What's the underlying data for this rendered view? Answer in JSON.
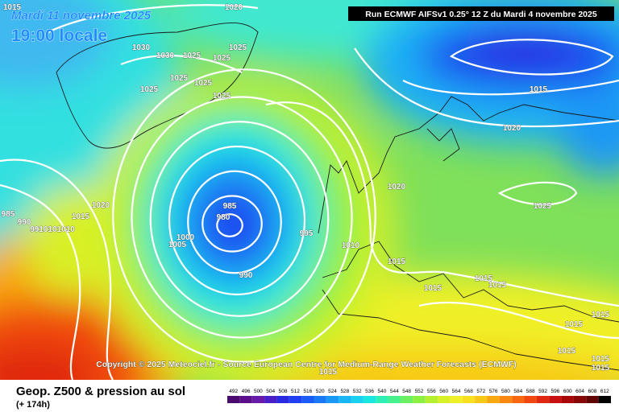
{
  "header": {
    "date": "Mardi 11 novembre 2025",
    "time": "19:00 locale",
    "run": "Run ECMWF AIFSv1 0.25° 12 Z du Mardi 4 novembre 2025"
  },
  "copyright": "Copyright © 2025 Meteociel.fr - Source European Centre for Medium-Range Weather Forecasts (ECMWF)",
  "footer": {
    "title": "Geop. Z500 & pression au sol",
    "lead": "(+ 174h)"
  },
  "isobar_labels": [
    "1015",
    "1020",
    "1030",
    "1030",
    "1025",
    "1025",
    "1025",
    "1025",
    "1025",
    "1025",
    "1025",
    "1015",
    "1020",
    "1020",
    "1025",
    "1020",
    "1015",
    "985",
    "990",
    "9910101010",
    "985",
    "980",
    "1000",
    "1005",
    "995",
    "990",
    "1010",
    "1015",
    "1015",
    "1015",
    "1015",
    "1015",
    "1015",
    "1015",
    "1015",
    "1015",
    "1015"
  ],
  "scale": {
    "values": [
      492,
      496,
      500,
      504,
      508,
      512,
      516,
      520,
      524,
      528,
      532,
      536,
      540,
      544,
      548,
      552,
      556,
      560,
      564,
      568,
      572,
      576,
      580,
      584,
      588,
      592,
      596,
      600,
      604,
      608,
      612
    ],
    "colors": [
      "#4b0b6e",
      "#5c0f8a",
      "#6a1aa8",
      "#4b1fc8",
      "#2a2ae0",
      "#1f3ff0",
      "#1a5cf5",
      "#1a7af5",
      "#1a98f5",
      "#19b5f5",
      "#1ad2f0",
      "#1ae8e0",
      "#2ef0b5",
      "#46f08a",
      "#6af060",
      "#8cf040",
      "#b4f030",
      "#d8f028",
      "#f0f028",
      "#f8e020",
      "#f8c818",
      "#f8a810",
      "#f88810",
      "#f86810",
      "#f04810",
      "#e02810",
      "#c81010",
      "#a80808",
      "#880808",
      "#600404",
      "#000000"
    ]
  }
}
